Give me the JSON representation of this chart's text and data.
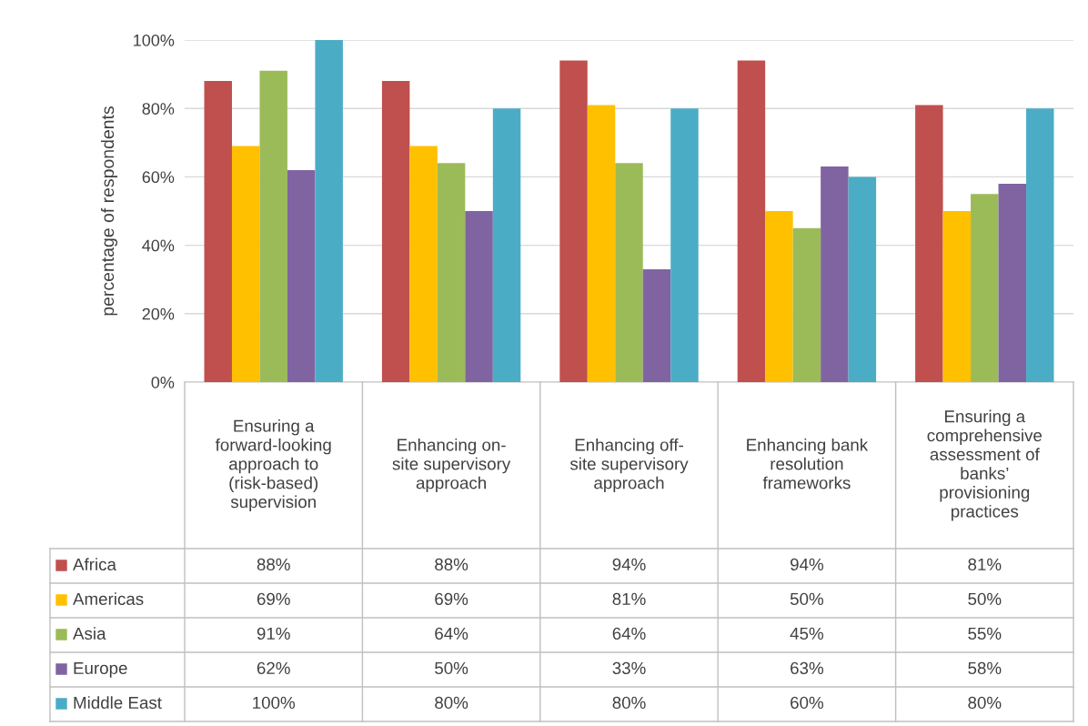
{
  "chart_data": {
    "type": "bar",
    "ylabel": "percentage of respondents",
    "categories": [
      "Ensuring a\nforward-looking\napproach to\n(risk-based)\nsupervision",
      "Enhancing on-\nsite supervisory\napproach",
      "Enhancing off-\nsite supervisory\napproach",
      "Enhancing bank\nresolution\nframeworks",
      "Ensuring a\ncomprehensive\nassessment of\nbanks’\nprovisioning\npractices"
    ],
    "series": [
      {
        "name": "Africa",
        "color": "#c0504d",
        "values": [
          88,
          88,
          94,
          94,
          81
        ],
        "value_labels": [
          "88%",
          "88%",
          "94%",
          "94%",
          "81%"
        ]
      },
      {
        "name": "Americas",
        "color": "#ffc000",
        "values": [
          69,
          69,
          81,
          50,
          50
        ],
        "value_labels": [
          "69%",
          "69%",
          "81%",
          "50%",
          "50%"
        ]
      },
      {
        "name": "Asia",
        "color": "#9bbb59",
        "values": [
          91,
          64,
          64,
          45,
          55
        ],
        "value_labels": [
          "91%",
          "64%",
          "64%",
          "45%",
          "55%"
        ]
      },
      {
        "name": "Europe",
        "color": "#8064a2",
        "values": [
          62,
          50,
          33,
          63,
          58
        ],
        "value_labels": [
          "62%",
          "50%",
          "33%",
          "63%",
          "58%"
        ]
      },
      {
        "name": "Middle East",
        "color": "#4bacc6",
        "values": [
          100,
          80,
          80,
          60,
          80
        ],
        "value_labels": [
          "100%",
          "80%",
          "80%",
          "60%",
          "80%"
        ]
      }
    ],
    "ylim": [
      0,
      100
    ],
    "yticks": [
      {
        "value": 0,
        "label": "0%"
      },
      {
        "value": 20,
        "label": "20%"
      },
      {
        "value": 40,
        "label": "40%"
      },
      {
        "value": 60,
        "label": "60%"
      },
      {
        "value": 80,
        "label": "80%"
      },
      {
        "value": 100,
        "label": "100%"
      }
    ],
    "grid": "y",
    "legend": "bottom"
  }
}
